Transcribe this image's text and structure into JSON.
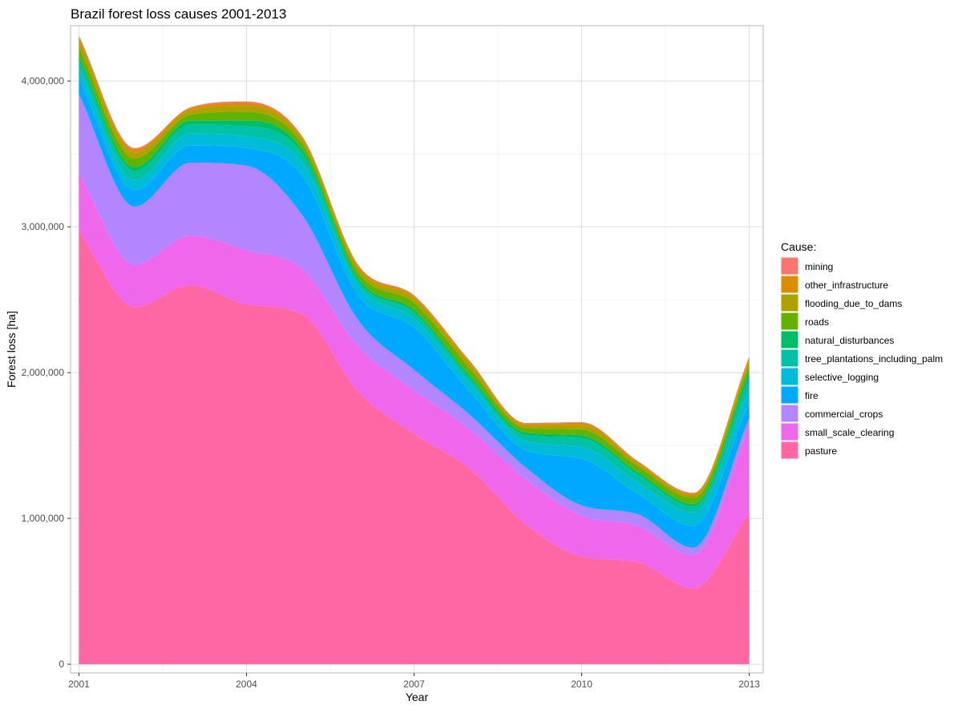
{
  "chart_data": {
    "type": "area",
    "title": "Brazil forest loss causes 2001-2013",
    "xlabel": "Year",
    "ylabel": "Forest loss [ha]",
    "x": [
      2001,
      2002,
      2003,
      2004,
      2005,
      2006,
      2007,
      2008,
      2009,
      2010,
      2011,
      2012,
      2013
    ],
    "xlim": [
      2000.85,
      2013.25
    ],
    "ylim": [
      -60000,
      4380000
    ],
    "x_ticks": [
      2001,
      2004,
      2007,
      2010,
      2013
    ],
    "x_tick_labels": [
      "2001",
      "2004",
      "2007",
      "2010",
      "2013"
    ],
    "y_ticks": [
      0,
      1000000,
      2000000,
      3000000,
      4000000
    ],
    "y_tick_labels": [
      "0",
      "1,000,000",
      "2,000,000",
      "3,000,000",
      "4,000,000"
    ],
    "grid": true,
    "smoothed": true,
    "legend": {
      "title": "Cause:",
      "position": "right"
    },
    "series": [
      {
        "name": "pasture",
        "color": "#FF67A4",
        "values": [
          2970000,
          2450000,
          2600000,
          2470000,
          2400000,
          1870000,
          1580000,
          1340000,
          960000,
          740000,
          700000,
          520000,
          1040000
        ]
      },
      {
        "name": "small_scale_clearing",
        "color": "#EF67EB",
        "values": [
          400000,
          290000,
          340000,
          370000,
          310000,
          310000,
          300000,
          270000,
          310000,
          280000,
          250000,
          230000,
          590000
        ]
      },
      {
        "name": "commercial_crops",
        "color": "#B385FF",
        "values": [
          540000,
          400000,
          500000,
          580000,
          370000,
          180000,
          140000,
          100000,
          80000,
          70000,
          80000,
          50000,
          60000
        ]
      },
      {
        "name": "fire",
        "color": "#00A9FF",
        "values": [
          110000,
          110000,
          120000,
          120000,
          270000,
          170000,
          290000,
          160000,
          120000,
          320000,
          140000,
          150000,
          110000
        ]
      },
      {
        "name": "selective_logging",
        "color": "#00BCD8",
        "values": [
          70000,
          70000,
          80000,
          80000,
          90000,
          70000,
          60000,
          60000,
          60000,
          80000,
          80000,
          90000,
          90000
        ]
      },
      {
        "name": "tree_plantations_including_palm",
        "color": "#00C1A3",
        "values": [
          50000,
          60000,
          60000,
          70000,
          60000,
          30000,
          40000,
          30000,
          40000,
          60000,
          50000,
          40000,
          80000
        ]
      },
      {
        "name": "natural_disturbances",
        "color": "#00BE67",
        "values": [
          30000,
          30000,
          30000,
          40000,
          30000,
          20000,
          20000,
          20000,
          20000,
          20000,
          20000,
          20000,
          40000
        ]
      },
      {
        "name": "roads",
        "color": "#64B200",
        "values": [
          60000,
          60000,
          40000,
          60000,
          40000,
          40000,
          50000,
          50000,
          30000,
          40000,
          40000,
          40000,
          40000
        ]
      },
      {
        "name": "flooding_due_to_dams",
        "color": "#AEA200",
        "values": [
          50000,
          40000,
          30000,
          40000,
          30000,
          30000,
          30000,
          30000,
          20000,
          30000,
          20000,
          20000,
          30000
        ]
      },
      {
        "name": "other_infrastructure",
        "color": "#DB8E00",
        "values": [
          20000,
          20000,
          15000,
          20000,
          15000,
          15000,
          15000,
          15000,
          10000,
          15000,
          10000,
          10000,
          20000
        ]
      },
      {
        "name": "mining",
        "color": "#F8766D",
        "values": [
          10000,
          10000,
          5000,
          10000,
          5000,
          5000,
          5000,
          5000,
          5000,
          5000,
          5000,
          5000,
          10000
        ]
      }
    ]
  }
}
